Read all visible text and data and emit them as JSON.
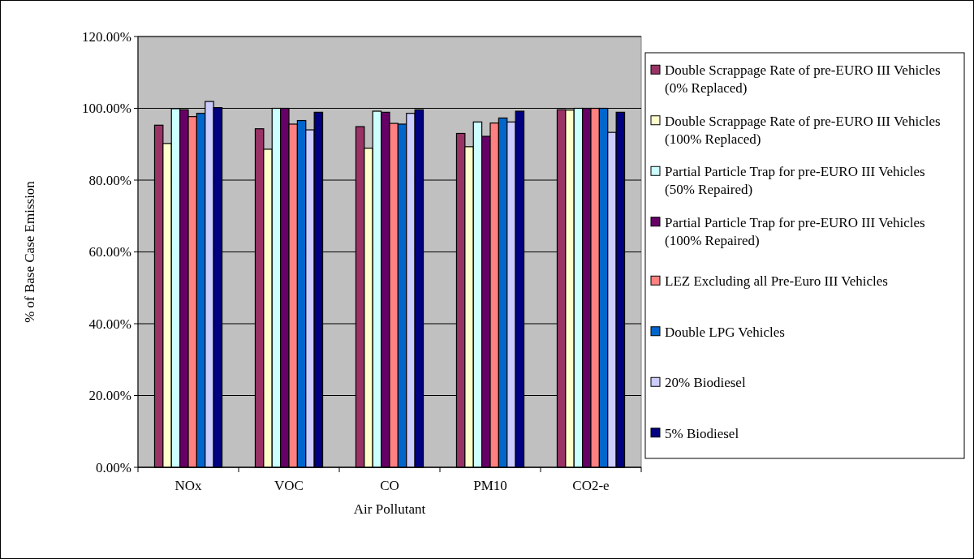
{
  "chart_data": {
    "type": "bar",
    "xlabel": "Air Pollutant",
    "ylabel": "% of Base Case Emission",
    "categories": [
      "NOx",
      "VOC",
      "CO",
      "PM10",
      "CO2-e"
    ],
    "series": [
      {
        "name": "Double Scrappage Rate of pre-EURO III Vehicles (0% Replaced)",
        "color": "#993366",
        "values": [
          95.3,
          94.3,
          94.9,
          93.0,
          99.6
        ]
      },
      {
        "name": "Double Scrappage Rate of pre-EURO III Vehicles (100% Replaced)",
        "color": "#ffffcc",
        "values": [
          90.2,
          88.6,
          88.9,
          89.3,
          99.5
        ]
      },
      {
        "name": "Partial Particle Trap for pre-EURO III Vehicles (50% Repaired)",
        "color": "#ccffff",
        "values": [
          99.9,
          100,
          99.2,
          96.2,
          100
        ]
      },
      {
        "name": "Partial Particle Trap for pre-EURO III Vehicles (100% Repaired)",
        "color": "#660066",
        "values": [
          99.6,
          100,
          98.9,
          92.2,
          100
        ]
      },
      {
        "name": "LEZ Excluding all Pre-Euro III Vehicles",
        "color": "#ff8080",
        "values": [
          97.7,
          95.6,
          95.8,
          95.9,
          100
        ]
      },
      {
        "name": "Double LPG Vehicles",
        "color": "#0066cc",
        "values": [
          98.6,
          96.6,
          95.6,
          97.3,
          100
        ]
      },
      {
        "name": "20% Biodiesel",
        "color": "#ccccff",
        "values": [
          101.9,
          94.0,
          98.6,
          96.2,
          93.3
        ]
      },
      {
        "name": "5% Biodiesel",
        "color": "#000080",
        "values": [
          100.2,
          98.9,
          99.6,
          99.2,
          98.9
        ]
      }
    ],
    "ylim": [
      0,
      120
    ],
    "yticks": [
      {
        "value": 0,
        "label": "0.00%"
      },
      {
        "value": 20,
        "label": "20.00%"
      },
      {
        "value": 40,
        "label": "40.00%"
      },
      {
        "value": 60,
        "label": "60.00%"
      },
      {
        "value": 80,
        "label": "80.00%"
      },
      {
        "value": 100,
        "label": "100.00%"
      },
      {
        "value": 120,
        "label": "120.00%"
      }
    ],
    "grid": "y",
    "legend": "right"
  }
}
